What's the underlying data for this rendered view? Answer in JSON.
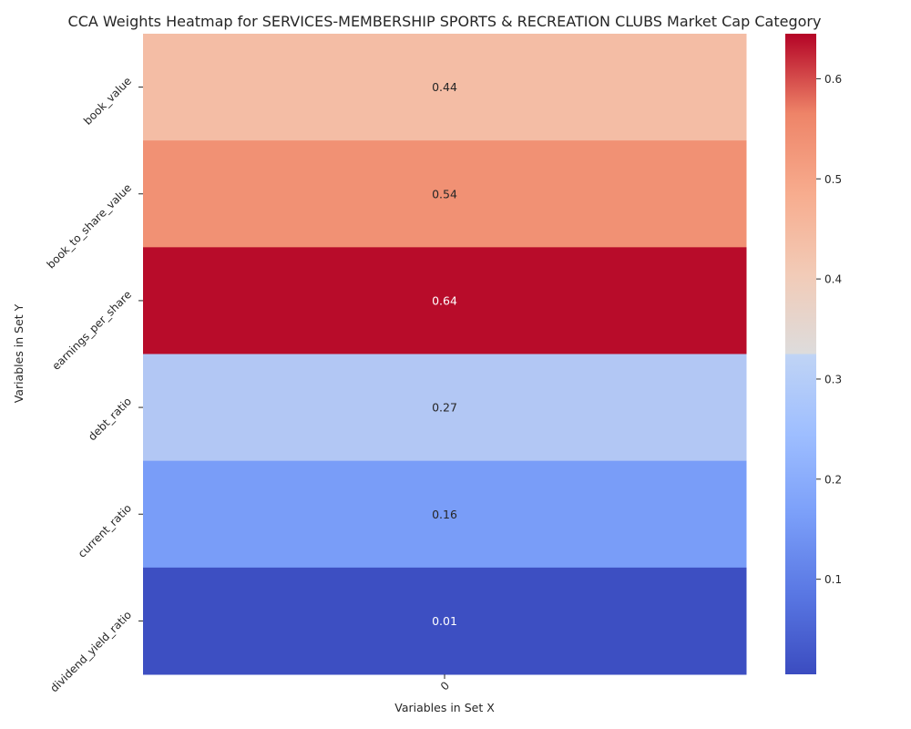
{
  "chart_data": {
    "type": "heatmap",
    "title": "CCA Weights Heatmap for SERVICES-MEMBERSHIP SPORTS & RECREATION CLUBS Market Cap Category",
    "xlabel": "Variables in Set X",
    "ylabel": "Variables in Set Y",
    "x_categories": [
      "0"
    ],
    "y_categories": [
      "book_value",
      "book_to_share_value",
      "earnings_per_share",
      "debt_ratio",
      "current_ratio",
      "dividend_yield_ratio"
    ],
    "values": [
      [
        0.44
      ],
      [
        0.54
      ],
      [
        0.64
      ],
      [
        0.27
      ],
      [
        0.16
      ],
      [
        0.01
      ]
    ],
    "value_labels": [
      "0.44",
      "0.54",
      "0.64",
      "0.27",
      "0.16",
      "0.01"
    ],
    "colormap": "coolwarm",
    "vmin": 0.005,
    "vmax": 0.645,
    "colorbar_ticks": [
      0.1,
      0.2,
      0.3,
      0.4,
      0.5,
      0.6
    ],
    "colorbar_tick_labels": [
      "0.1",
      "0.2",
      "0.3",
      "0.4",
      "0.5",
      "0.6"
    ]
  }
}
